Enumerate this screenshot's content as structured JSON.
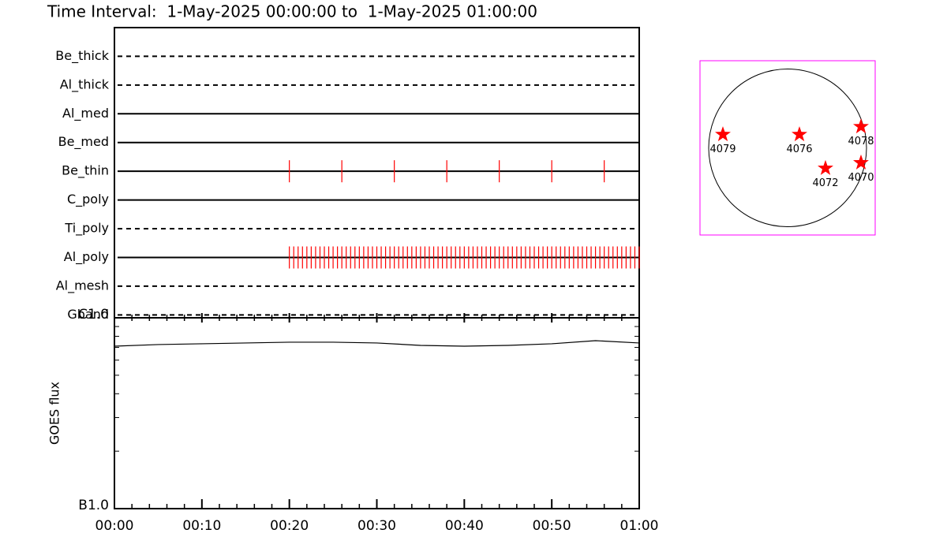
{
  "chart_data": [
    {
      "type": "timeline",
      "title": "Time Interval:  1-May-2025 00:00:00 to  1-May-2025 01:00:00",
      "categories": [
        "Be_thick",
        "Al_thick",
        "Al_med",
        "Be_med",
        "Be_thin",
        "C_poly",
        "Ti_poly",
        "Al_poly",
        "Al_mesh",
        "Gband"
      ],
      "line_styles": [
        "dashed",
        "dashed",
        "solid",
        "solid",
        "solid",
        "solid",
        "dashed",
        "solid",
        "dashed",
        "dashed"
      ],
      "events": [
        [],
        [],
        [],
        [],
        [
          20,
          26,
          32,
          38,
          44,
          50,
          56
        ],
        [],
        [],
        [
          20,
          20.5,
          21,
          21.5,
          22,
          22.5,
          23,
          23.5,
          24,
          24.5,
          25,
          25.5,
          26,
          26.5,
          27,
          27.5,
          28,
          28.5,
          29,
          29.5,
          30,
          30.5,
          31,
          31.5,
          32,
          32.5,
          33,
          33.5,
          34,
          34.5,
          35,
          35.5,
          36,
          36.5,
          37,
          37.5,
          38,
          38.5,
          39,
          39.5,
          40,
          40.5,
          41,
          41.5,
          42,
          42.5,
          43,
          43.5,
          44,
          44.5,
          45,
          45.5,
          46,
          46.5,
          47,
          47.5,
          48,
          48.5,
          49,
          49.5,
          50,
          50.5,
          51,
          51.5,
          52,
          52.5,
          53,
          53.5,
          54,
          54.5,
          55,
          55.5,
          56,
          56.5,
          57,
          57.5,
          58,
          58.5,
          59,
          59.5,
          60
        ],
        [],
        []
      ],
      "color": "#ff0000",
      "xlim": [
        0,
        60
      ]
    },
    {
      "type": "line",
      "ylabel": "GOES flux",
      "x": [
        0,
        5,
        10,
        15,
        20,
        25,
        30,
        35,
        40,
        45,
        50,
        55,
        60
      ],
      "values": [
        7.1e-07,
        7.24e-07,
        7.31e-07,
        7.38e-07,
        7.45e-07,
        7.45e-07,
        7.38e-07,
        7.17e-07,
        7.1e-07,
        7.17e-07,
        7.31e-07,
        7.59e-07,
        7.38e-07
      ],
      "color": "#000000",
      "xlim": [
        0,
        60
      ],
      "xticks": [
        {
          "value": 0,
          "label": "00:00"
        },
        {
          "value": 10,
          "label": "00:10"
        },
        {
          "value": 20,
          "label": "00:20"
        },
        {
          "value": 30,
          "label": "00:30"
        },
        {
          "value": 40,
          "label": "00:40"
        },
        {
          "value": 50,
          "label": "00:50"
        },
        {
          "value": 60,
          "label": "01:00"
        }
      ],
      "xminorticks": [
        2,
        4,
        6,
        8,
        12,
        14,
        16,
        18,
        22,
        24,
        26,
        28,
        32,
        34,
        36,
        38,
        42,
        44,
        46,
        48,
        52,
        54,
        56,
        58
      ],
      "log_y": true,
      "ylim": [
        1e-07,
        1e-06
      ],
      "yticks": [
        {
          "value": 1e-07,
          "label": "B1.0"
        },
        {
          "value": 1e-06,
          "label": "C1.0"
        }
      ],
      "yminorticks": [
        2e-07,
        3e-07,
        4e-07,
        5e-07,
        6e-07,
        7e-07,
        8e-07,
        9e-07
      ]
    },
    {
      "type": "scatter",
      "labels": [
        "4079",
        "4076",
        "4078",
        "4072",
        "4070"
      ],
      "x": [
        -0.82,
        0.15,
        0.93,
        0.48,
        0.93
      ],
      "y": [
        0.17,
        0.17,
        0.27,
        -0.26,
        -0.19
      ],
      "color": "#ff0000",
      "frame_color": "#ff00ff",
      "xlim": [
        -1.11,
        1.11
      ],
      "ylim": [
        -1.11,
        1.11
      ]
    }
  ]
}
